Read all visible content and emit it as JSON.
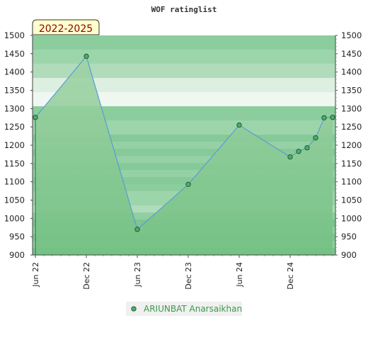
{
  "chart_data": {
    "type": "area",
    "title": "WOF ratinglist",
    "period_label": "2022-2025",
    "ylim": [
      900,
      1500
    ],
    "y_ticks": [
      900,
      950,
      1000,
      1050,
      1100,
      1150,
      1200,
      1250,
      1300,
      1350,
      1400,
      1450,
      1500
    ],
    "x_ticks": [
      "Jun 22",
      "Dec 22",
      "Jun 23",
      "Dec 23",
      "Jun 24",
      "Dec 24"
    ],
    "grid": "horizontal bands",
    "legend_position": "bottom",
    "series": [
      {
        "name": "ARIUNBAT Anarsaikhan",
        "x": [
          "2022-06",
          "2022-12",
          "2023-06",
          "2023-12",
          "2024-06",
          "2024-12",
          "2025-01",
          "2025-02",
          "2025-03",
          "2025-04",
          "2025-05"
        ],
        "values": [
          1276,
          1443,
          970,
          1093,
          1255,
          1168,
          1183,
          1193,
          1220,
          1275,
          1276
        ]
      }
    ],
    "colors": {
      "line": "#5b9bd5",
      "marker_fill": "#4cae6a",
      "marker_stroke": "#1e4d2b",
      "fill_top": "#9fd2a5",
      "fill_bottom": "#74c184",
      "label_bg": "#ffffcc",
      "legend_text": "#3a9a4a"
    }
  }
}
